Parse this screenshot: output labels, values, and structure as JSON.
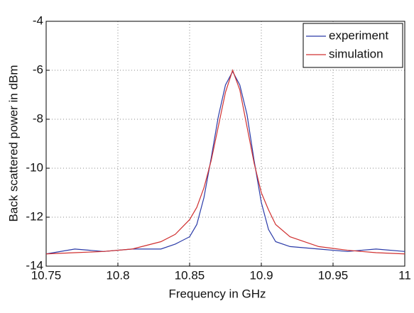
{
  "chart_data": {
    "type": "line",
    "xlabel": "Frequency in GHz",
    "ylabel": "Back scattered power in dBm",
    "x": [
      10.75,
      10.77,
      10.79,
      10.81,
      10.83,
      10.84,
      10.85,
      10.855,
      10.86,
      10.865,
      10.87,
      10.875,
      10.88,
      10.885,
      10.89,
      10.895,
      10.9,
      10.905,
      10.91,
      10.92,
      10.94,
      10.96,
      10.98,
      11
    ],
    "series": [
      {
        "name": "experiment",
        "color": "#2a3aa8",
        "values": [
          -13.5,
          -13.3,
          -13.4,
          -13.3,
          -13.3,
          -13.1,
          -12.8,
          -12.3,
          -11.2,
          -9.6,
          -7.9,
          -6.6,
          -6.05,
          -6.6,
          -7.8,
          -9.7,
          -11.4,
          -12.5,
          -13.0,
          -13.2,
          -13.3,
          -13.4,
          -13.3,
          -13.4
        ]
      },
      {
        "name": "simulation",
        "color": "#d03030",
        "values": [
          -13.5,
          -13.45,
          -13.4,
          -13.3,
          -13.0,
          -12.7,
          -12.1,
          -11.6,
          -10.8,
          -9.7,
          -8.3,
          -6.9,
          -6.0,
          -6.8,
          -8.3,
          -9.8,
          -11.0,
          -11.7,
          -12.3,
          -12.8,
          -13.2,
          -13.35,
          -13.45,
          -13.5
        ]
      }
    ],
    "xlim": [
      10.75,
      11
    ],
    "xticks": [
      10.75,
      10.8,
      10.85,
      10.9,
      10.95,
      11
    ],
    "ylim": [
      -14,
      -4
    ],
    "yticks": [
      -14,
      -12,
      -10,
      -8,
      -6,
      -4
    ],
    "grid": true,
    "legend": "upper right"
  }
}
